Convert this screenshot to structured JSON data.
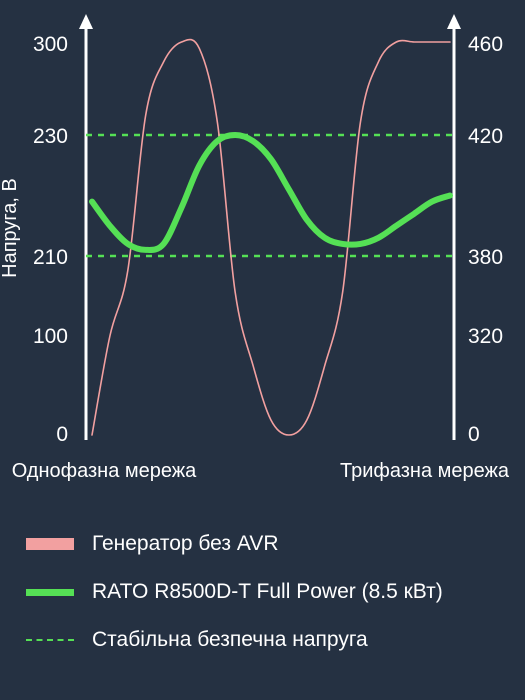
{
  "chart_data": {
    "type": "line",
    "ylabel_left": "Напруга, В",
    "ylabel_right": "",
    "xlabel_left": "Однофазна мережа",
    "xlabel_right": "Трифазна мережа",
    "yticks_left": [
      "300",
      "230",
      "210",
      "100",
      "0"
    ],
    "yticks_right": [
      "460",
      "420",
      "380",
      "320",
      "0"
    ],
    "series": [
      {
        "name": "Генератор без AVR",
        "color": "#f2a0a0",
        "x": [
          0,
          0.05,
          0.1,
          0.15,
          0.2,
          0.25,
          0.3,
          0.35,
          0.4,
          0.45,
          0.5,
          0.55,
          0.6,
          0.65,
          0.7,
          0.75,
          0.8,
          0.85,
          0.9,
          0.95,
          1.0
        ],
        "y": [
          0,
          100,
          190,
          245,
          285,
          300,
          295,
          240,
          160,
          70,
          15,
          0,
          15,
          70,
          160,
          240,
          285,
          300,
          300,
          300,
          300
        ]
      },
      {
        "name": "RATO R8500D-T Full Power (8.5 кВт)",
        "color": "#55e055",
        "x": [
          0,
          0.05,
          0.1,
          0.15,
          0.2,
          0.25,
          0.3,
          0.35,
          0.4,
          0.45,
          0.5,
          0.55,
          0.6,
          0.65,
          0.7,
          0.75,
          0.8,
          0.85,
          0.9,
          0.95,
          1.0
        ],
        "y": [
          219,
          215,
          212,
          211,
          212,
          218,
          225,
          229,
          230,
          229,
          226,
          221,
          216,
          213,
          212,
          212,
          213,
          215,
          217,
          219,
          220
        ]
      }
    ],
    "reference_lines": {
      "name": "Стабільна безпечна напруга",
      "color": "#55e055",
      "values": [
        230,
        210
      ]
    },
    "grid": false,
    "legend_position": "bottom"
  }
}
